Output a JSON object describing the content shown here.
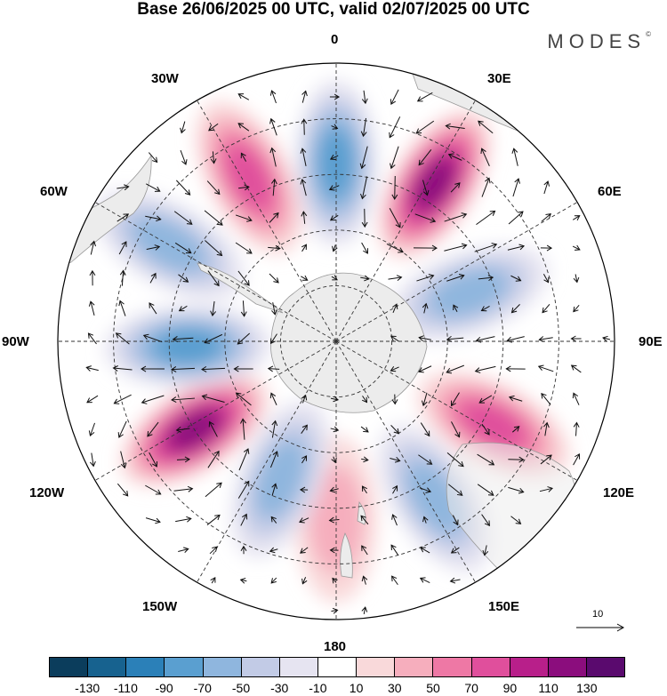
{
  "title": "Base 26/06/2025 00 UTC, valid 02/07/2025 00 UTC",
  "brand": "MODES",
  "brand_mark": "©",
  "longitude_labels": {
    "n0": "0",
    "n30e": "30E",
    "n60e": "60E",
    "n90e": "90E",
    "n120e": "120E",
    "n150e": "150E",
    "n180": "180",
    "n150w": "150W",
    "n120w": "120W",
    "n90w": "90W",
    "n60w": "60W",
    "n30w": "30W"
  },
  "reference_vector": "10",
  "colorbar": {
    "colors": [
      "#0b3d5c",
      "#17628f",
      "#2b80b8",
      "#5a9fd0",
      "#8fb6de",
      "#c2cbe6",
      "#e6e4f1",
      "#ffffff",
      "#f9d9da",
      "#f6aebd",
      "#ee78a5",
      "#e04f9c",
      "#b81f8a",
      "#8b0d7d",
      "#5a0a6e"
    ],
    "tick_labels": [
      "-130",
      "-110",
      "-90",
      "-70",
      "-50",
      "-30",
      "-10",
      "10",
      "30",
      "50",
      "70",
      "90",
      "110",
      "130"
    ]
  },
  "anomaly_centers": [
    {
      "lon": 0,
      "lat": -42,
      "sign": "negative",
      "level": 70
    },
    {
      "lon": 32,
      "lat": -40,
      "sign": "positive",
      "level": 110
    },
    {
      "lon": 70,
      "lat": -52,
      "sign": "negative",
      "level": 50
    },
    {
      "lon": 118,
      "lat": -42,
      "sign": "positive",
      "level": 70
    },
    {
      "lon": 148,
      "lat": -40,
      "sign": "negative",
      "level": 50
    },
    {
      "lon": 180,
      "lat": -42,
      "sign": "positive",
      "level": 30
    },
    {
      "lon": -158,
      "lat": -50,
      "sign": "negative",
      "level": 50
    },
    {
      "lon": -122,
      "lat": -45,
      "sign": "positive",
      "level": 110
    },
    {
      "lon": -92,
      "lat": -50,
      "sign": "negative",
      "level": 70
    },
    {
      "lon": -60,
      "lat": -38,
      "sign": "negative",
      "level": 50
    },
    {
      "lon": -28,
      "lat": -40,
      "sign": "positive",
      "level": 70
    }
  ]
}
